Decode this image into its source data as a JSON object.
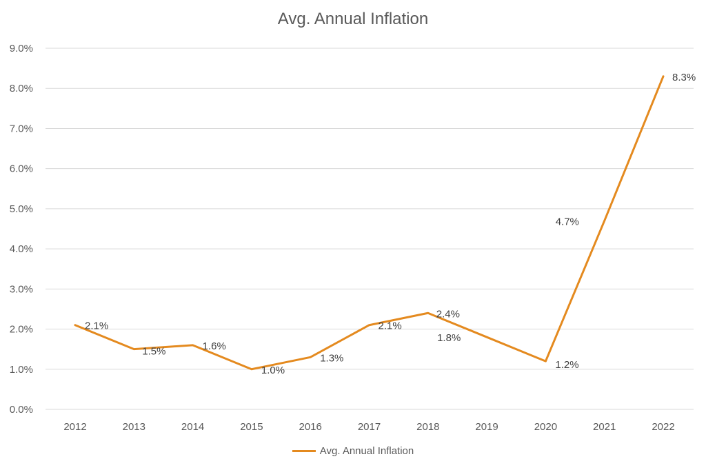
{
  "colors": {
    "series": "#E48A1F",
    "grid": "#D9D9D9",
    "text": "#595959"
  },
  "chart_data": {
    "type": "line",
    "title": "Avg. Annual Inflation",
    "categories": [
      "2012",
      "2013",
      "2014",
      "2015",
      "2016",
      "2017",
      "2018",
      "2019",
      "2020",
      "2021",
      "2022"
    ],
    "series": [
      {
        "name": "Avg. Annual Inflation",
        "values": [
          2.1,
          1.5,
          1.6,
          1.0,
          1.3,
          2.1,
          2.4,
          1.8,
          1.2,
          4.7,
          8.3
        ],
        "data_labels": [
          "2.1%",
          "1.5%",
          "1.6%",
          "1.0%",
          "1.3%",
          "2.1%",
          "2.4%",
          "1.8%",
          "1.2%",
          "4.7%",
          "8.3%"
        ]
      }
    ],
    "ylim": [
      0,
      9
    ],
    "y_ticks": [
      "0.0%",
      "1.0%",
      "2.0%",
      "3.0%",
      "4.0%",
      "5.0%",
      "6.0%",
      "7.0%",
      "8.0%",
      "9.0%"
    ],
    "grid": true,
    "legend_position": "bottom"
  }
}
